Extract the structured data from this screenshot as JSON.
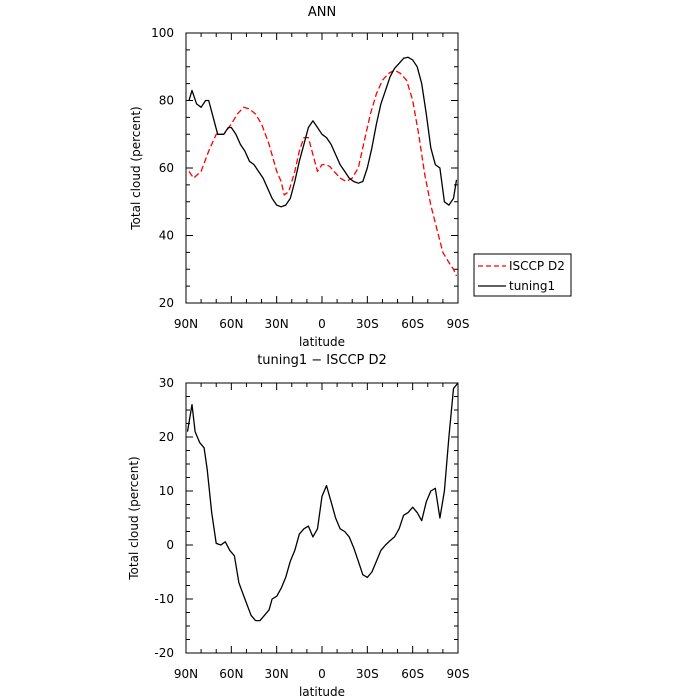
{
  "chart_data": [
    {
      "type": "line",
      "title": "ANN",
      "xlabel": "latitude",
      "ylabel": "Total cloud (percent)",
      "xlim": [
        90,
        -90
      ],
      "ylim": [
        20,
        100
      ],
      "xticks": [
        90,
        60,
        30,
        0,
        -30,
        -60,
        -90
      ],
      "xtick_labels": [
        "90N",
        "60N",
        "30N",
        "0",
        "30S",
        "60S",
        "90S"
      ],
      "yticks": [
        20,
        40,
        60,
        80,
        100
      ],
      "legend": "right",
      "series": [
        {
          "name": "ISCCP D2",
          "color": "#ff0000",
          "dash": "dashed",
          "x": [
            88,
            85,
            80,
            75,
            70,
            65,
            60,
            56,
            52,
            48,
            44,
            40,
            35,
            30,
            27,
            25,
            22,
            18,
            15,
            12,
            9,
            6,
            3,
            0,
            -2,
            -5,
            -8,
            -12,
            -16,
            -20,
            -24,
            -28,
            -32,
            -36,
            -40,
            -44,
            -48,
            -52,
            -56,
            -60,
            -64,
            -68,
            -72,
            -76,
            -80,
            -84,
            -87,
            -89
          ],
          "y": [
            59,
            57,
            59,
            65,
            70,
            70,
            73,
            76,
            78,
            77.5,
            76,
            73,
            67,
            59,
            56,
            52,
            53,
            59,
            65,
            69,
            69,
            64,
            59,
            61,
            61,
            60.5,
            59,
            57,
            56,
            57,
            60,
            68,
            76,
            82,
            86,
            88,
            89,
            88,
            86,
            80,
            70,
            58,
            49,
            42,
            35,
            32,
            30,
            28
          ]
        },
        {
          "name": "tuning1",
          "color": "#000000",
          "dash": "solid",
          "x": [
            88,
            86,
            83,
            80,
            77,
            75,
            72,
            69,
            65,
            62,
            60,
            57,
            54,
            51,
            48,
            45,
            42,
            39,
            36,
            33,
            30,
            27,
            24,
            21,
            18,
            15,
            12,
            9,
            6,
            3,
            0,
            -3,
            -6,
            -9,
            -12,
            -15,
            -18,
            -21,
            -24,
            -27,
            -30,
            -33,
            -36,
            -39,
            -42,
            -45,
            -48,
            -51,
            -54,
            -57,
            -60,
            -63,
            -66,
            -69,
            -72,
            -75,
            -78,
            -81,
            -84,
            -87,
            -89
          ],
          "y": [
            80,
            83,
            79,
            78,
            80,
            80,
            75,
            70,
            70,
            72,
            72,
            70,
            67,
            65,
            62,
            61,
            59,
            57,
            54,
            51,
            49,
            48.5,
            49,
            51,
            56,
            62,
            67,
            72,
            74,
            72,
            70,
            69,
            67,
            64,
            61,
            59,
            57,
            56,
            55.5,
            56,
            60,
            66,
            73,
            79,
            83,
            87,
            89.5,
            91,
            92.5,
            92.8,
            92,
            90,
            85,
            76,
            66,
            61,
            60,
            50,
            49,
            51,
            56.5
          ]
        }
      ]
    },
    {
      "type": "line",
      "title": "tuning1 − ISCCP D2",
      "xlabel": "latitude",
      "ylabel": "Total cloud (percent)",
      "xlim": [
        90,
        -90
      ],
      "ylim": [
        -20,
        30
      ],
      "xticks": [
        90,
        60,
        30,
        0,
        -30,
        -60,
        -90
      ],
      "xtick_labels": [
        "90N",
        "60N",
        "30N",
        "0",
        "30S",
        "60S",
        "90S"
      ],
      "yticks": [
        -20,
        -10,
        0,
        10,
        20,
        30
      ],
      "series": [
        {
          "color": "#000000",
          "dash": "solid",
          "x": [
            89,
            86,
            84,
            81,
            78,
            76,
            73,
            70,
            67,
            64,
            61,
            58,
            55,
            51,
            47,
            44,
            41,
            38,
            35,
            33,
            30,
            27,
            24,
            21,
            18,
            15,
            12,
            9,
            6,
            3,
            0,
            -3,
            -6,
            -9,
            -12,
            -15,
            -18,
            -21,
            -24,
            -27,
            -30,
            -33,
            -36,
            -39,
            -42,
            -45,
            -48,
            -51,
            -54,
            -57,
            -60,
            -63,
            -66,
            -69,
            -72,
            -75,
            -78,
            -81,
            -84,
            -87,
            -90
          ],
          "y": [
            21,
            26,
            21,
            19,
            18,
            14,
            6,
            0.3,
            0,
            0.6,
            -1,
            -2,
            -7,
            -10,
            -13,
            -14,
            -14,
            -13,
            -12,
            -10,
            -9.5,
            -8,
            -6,
            -3,
            -1,
            2,
            3,
            3.5,
            1.5,
            3,
            9,
            11,
            8,
            5,
            3,
            2.5,
            1.5,
            -0.5,
            -3,
            -5.5,
            -6,
            -5,
            -3,
            -1,
            0,
            0.8,
            1.5,
            3,
            5.5,
            6,
            7,
            6,
            4.5,
            8,
            10,
            10.5,
            5,
            10,
            20,
            29,
            31
          ]
        }
      ]
    }
  ]
}
